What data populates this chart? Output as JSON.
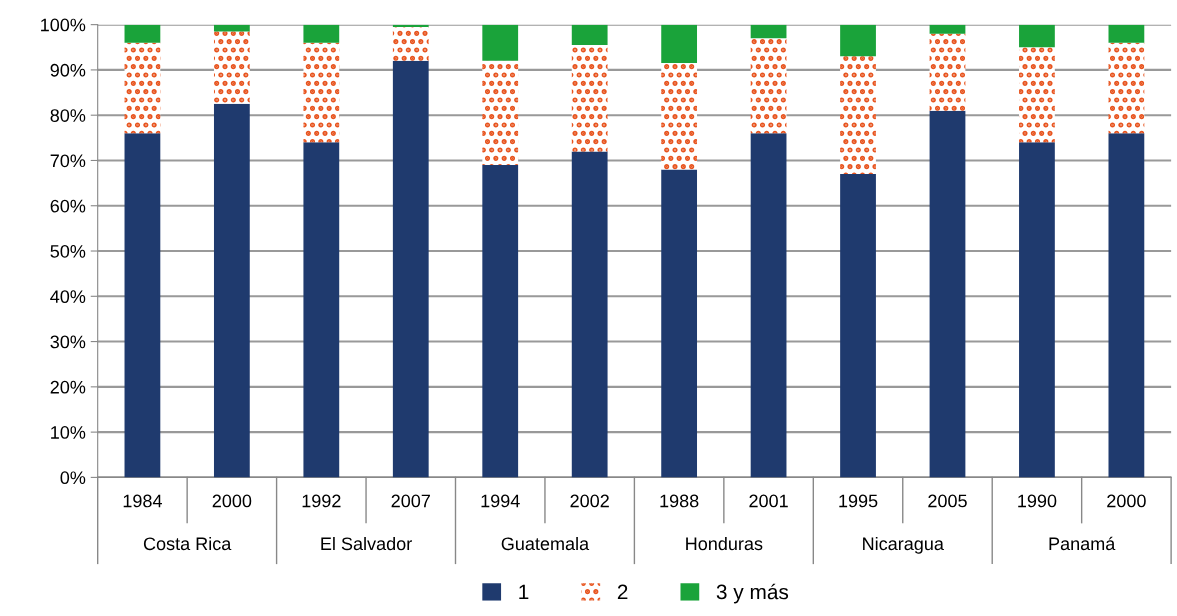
{
  "chart_data": {
    "type": "bar",
    "stacked": true,
    "categories": [
      "1984",
      "2000",
      "1992",
      "2007",
      "1994",
      "2002",
      "1988",
      "2001",
      "1995",
      "2005",
      "1990",
      "2000"
    ],
    "series": [
      {
        "name": "1",
        "color": "#1f3a6e",
        "values": [
          76,
          82.5,
          74,
          92,
          69,
          72,
          68,
          76,
          67,
          81,
          74,
          76
        ]
      },
      {
        "name": "2",
        "color": "#e8541e",
        "values": [
          20,
          16,
          22,
          7.5,
          23,
          23.5,
          23.5,
          21,
          26,
          17,
          21,
          20
        ]
      },
      {
        "name": "3 y más",
        "color": "#1aa33a",
        "values": [
          4,
          1.5,
          4,
          0.5,
          8,
          4.5,
          8.5,
          3,
          7,
          2,
          5,
          4
        ]
      }
    ],
    "annotations": [
      "Costa Rica",
      "El Salvador",
      "Guatemala",
      "Honduras",
      "Nicaragua",
      "Panamá"
    ],
    "ylim": [
      0,
      100
    ],
    "yticks": [
      {
        "value": 0,
        "label": "0%"
      },
      {
        "value": 10,
        "label": "10%"
      },
      {
        "value": 20,
        "label": "20%"
      },
      {
        "value": 30,
        "label": "30%"
      },
      {
        "value": 40,
        "label": "40%"
      },
      {
        "value": 50,
        "label": "50%"
      },
      {
        "value": 60,
        "label": "60%"
      },
      {
        "value": 70,
        "label": "70%"
      },
      {
        "value": 80,
        "label": "80%"
      },
      {
        "value": 90,
        "label": "90%"
      },
      {
        "value": 100,
        "label": "100%"
      }
    ],
    "grid": "y",
    "legend": "bottom"
  }
}
